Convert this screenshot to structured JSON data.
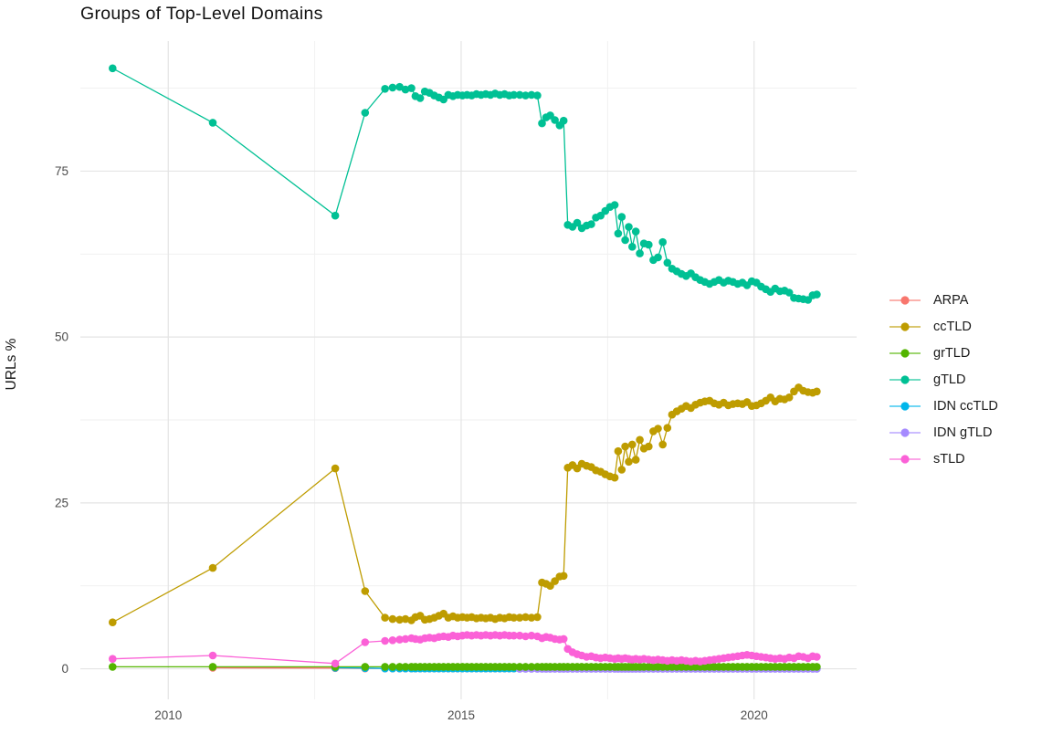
{
  "chart_data": {
    "type": "line",
    "title": "Groups of Top-Level Domains",
    "xlabel": "",
    "ylabel": "URLs %",
    "xlim": [
      2008.5,
      2021.75
    ],
    "ylim": [
      -4.6,
      94.6
    ],
    "grid": true,
    "legend_position": "right",
    "x_ticks": [
      {
        "value": 2010,
        "label": "2010"
      },
      {
        "value": 2015,
        "label": "2015"
      },
      {
        "value": 2020,
        "label": "2020"
      }
    ],
    "x_minor_ticks": [
      2012.5,
      2017.5
    ],
    "y_ticks": [
      {
        "value": 0,
        "label": "0"
      },
      {
        "value": 25,
        "label": "25"
      },
      {
        "value": 50,
        "label": "50"
      },
      {
        "value": 75,
        "label": "75"
      }
    ],
    "y_minor_ticks": [
      12.5,
      37.5,
      62.5,
      87.5
    ],
    "x": [
      2009.05,
      2010.76,
      2012.85,
      2013.36,
      2013.7,
      2013.83,
      2013.95,
      2014.05,
      2014.15,
      2014.22,
      2014.3,
      2014.38,
      2014.46,
      2014.54,
      2014.62,
      2014.7,
      2014.78,
      2014.86,
      2014.94,
      2015.02,
      2015.1,
      2015.18,
      2015.26,
      2015.34,
      2015.42,
      2015.5,
      2015.58,
      2015.66,
      2015.74,
      2015.82,
      2015.9,
      2016.0,
      2016.1,
      2016.2,
      2016.3,
      2016.38,
      2016.45,
      2016.52,
      2016.6,
      2016.68,
      2016.75,
      2016.82,
      2016.9,
      2016.98,
      2017.06,
      2017.14,
      2017.22,
      2017.3,
      2017.38,
      2017.46,
      2017.54,
      2017.62,
      2017.68,
      2017.74,
      2017.8,
      2017.86,
      2017.92,
      2017.98,
      2018.05,
      2018.12,
      2018.2,
      2018.28,
      2018.36,
      2018.44,
      2018.52,
      2018.6,
      2018.68,
      2018.76,
      2018.84,
      2018.92,
      2019.0,
      2019.08,
      2019.16,
      2019.24,
      2019.32,
      2019.4,
      2019.48,
      2019.56,
      2019.64,
      2019.72,
      2019.8,
      2019.88,
      2019.96,
      2020.04,
      2020.12,
      2020.2,
      2020.28,
      2020.36,
      2020.44,
      2020.52,
      2020.6,
      2020.68,
      2020.76,
      2020.84,
      2020.92,
      2021.0,
      2021.07
    ],
    "series": [
      {
        "name": "ARPA",
        "color": "#F8766D",
        "y": [
          null,
          0.15,
          0.1,
          0.05,
          0.05,
          0.05,
          0.05,
          0.05,
          0.05,
          0.05,
          0.05,
          0.05,
          0.05,
          0.05,
          0.05,
          0.05,
          0.05,
          0.05,
          0.05,
          0.05,
          0.05,
          0.05,
          0.05,
          0.05,
          0.05,
          0.05,
          0.05,
          0.05,
          0.05,
          0.05,
          0.05,
          0.05,
          0.05,
          0.05,
          0.05,
          0.05,
          0.05,
          0.05,
          0.05,
          0.05,
          0.05,
          0.05,
          0.05,
          0.05,
          0.05,
          0.05,
          0.05,
          0.05,
          0.05,
          0.05,
          0.05,
          0.05,
          0.05,
          0.05,
          0.05,
          0.05,
          0.05,
          0.05,
          0.05,
          0.05,
          0.05,
          0.05,
          0.05,
          0.05,
          0.05,
          0.05,
          0.05,
          0.05,
          0.05,
          0.05,
          0.05,
          0.05,
          0.05,
          0.05,
          0.05,
          0.05,
          0.05,
          0.05,
          0.05,
          0.05,
          0.05,
          0.05,
          0.05,
          0.05,
          0.05,
          0.05,
          0.05,
          0.05,
          0.05,
          0.05,
          0.05,
          0.05,
          0.05,
          0.05,
          0.05,
          0.05,
          0.05
        ]
      },
      {
        "name": "IDN ccTLD",
        "color": "#00B6EB",
        "y": [
          null,
          null,
          0.15,
          0.1,
          0.05,
          0.05,
          0.05,
          0.05,
          0.05,
          0.05,
          0.05,
          0.05,
          0.05,
          0.05,
          0.05,
          0.05,
          0.05,
          0.05,
          0.05,
          0.05,
          0.05,
          0.05,
          0.05,
          0.05,
          0.05,
          0.05,
          0.05,
          0.05,
          0.05,
          0.05,
          0.05,
          0.05,
          0.05,
          0.05,
          0.05,
          0.05,
          0.05,
          0.05,
          0.05,
          0.05,
          0.05,
          0.05,
          0.05,
          0.05,
          0.05,
          0.05,
          0.05,
          0.05,
          0.05,
          0.05,
          0.05,
          0.05,
          0.05,
          0.05,
          0.05,
          0.05,
          0.05,
          0.05,
          0.05,
          0.05,
          0.05,
          0.05,
          0.05,
          0.05,
          0.05,
          0.05,
          0.05,
          0.05,
          0.05,
          0.05,
          0.05,
          0.05,
          0.05,
          0.05,
          0.05,
          0.05,
          0.05,
          0.05,
          0.05,
          0.05,
          0.05,
          0.05,
          0.05,
          0.05,
          0.05,
          0.05,
          0.05,
          0.05,
          0.05,
          0.05,
          0.05,
          0.05,
          0.05,
          0.05,
          0.05,
          0.05,
          0.05
        ]
      },
      {
        "name": "IDN gTLD",
        "color": "#A58AFF",
        "y": [
          null,
          null,
          null,
          null,
          null,
          null,
          null,
          null,
          null,
          null,
          null,
          null,
          null,
          null,
          null,
          null,
          null,
          null,
          null,
          null,
          null,
          null,
          null,
          null,
          null,
          null,
          null,
          null,
          null,
          null,
          null,
          0.0,
          0.0,
          0.0,
          0.0,
          0.0,
          0.0,
          0.0,
          0.0,
          0.0,
          0.0,
          0.0,
          0.0,
          0.0,
          0.0,
          0.0,
          0.0,
          0.0,
          0.0,
          0.0,
          0.0,
          0.0,
          0.0,
          0.0,
          0.0,
          0.0,
          0.0,
          0.0,
          0.0,
          0.0,
          0.0,
          0.0,
          0.0,
          0.0,
          0.0,
          0.0,
          0.0,
          0.0,
          0.0,
          0.0,
          0.0,
          0.0,
          0.0,
          0.0,
          0.0,
          0.0,
          0.0,
          0.0,
          0.0,
          0.0,
          0.0,
          0.0,
          0.0,
          0.0,
          0.0,
          0.0,
          0.0,
          0.0,
          0.0,
          0.0,
          0.0,
          0.0,
          0.0,
          0.0,
          0.0,
          0.0,
          0.0
        ]
      },
      {
        "name": "ccTLD",
        "color": "#BE9C00",
        "y": [
          7.0,
          15.2,
          30.2,
          11.7,
          7.7,
          7.5,
          7.4,
          7.5,
          7.3,
          7.8,
          8.0,
          7.4,
          7.5,
          7.7,
          8.0,
          8.3,
          7.7,
          7.9,
          7.7,
          7.8,
          7.7,
          7.8,
          7.6,
          7.7,
          7.6,
          7.7,
          7.5,
          7.7,
          7.6,
          7.8,
          7.7,
          7.7,
          7.8,
          7.7,
          7.8,
          13.0,
          12.8,
          12.5,
          13.2,
          13.9,
          14.0,
          30.3,
          30.7,
          30.2,
          30.9,
          30.6,
          30.4,
          29.9,
          29.7,
          29.3,
          29.0,
          28.8,
          32.8,
          30.0,
          33.5,
          31.2,
          33.8,
          31.5,
          34.5,
          33.2,
          33.5,
          35.8,
          36.2,
          33.8,
          36.3,
          38.3,
          38.8,
          39.2,
          39.6,
          39.3,
          39.8,
          40.1,
          40.3,
          40.4,
          40.0,
          39.8,
          40.1,
          39.7,
          39.9,
          40.0,
          39.9,
          40.2,
          39.6,
          39.7,
          40.0,
          40.4,
          40.9,
          40.3,
          40.7,
          40.6,
          40.9,
          41.8,
          42.4,
          41.9,
          41.7,
          41.6,
          41.8
        ]
      },
      {
        "name": "grTLD",
        "color": "#53B400",
        "y": [
          0.3,
          0.3,
          0.3,
          0.3,
          0.3,
          0.3,
          0.3,
          0.3,
          0.3,
          0.3,
          0.3,
          0.3,
          0.3,
          0.3,
          0.3,
          0.3,
          0.3,
          0.3,
          0.3,
          0.3,
          0.3,
          0.3,
          0.3,
          0.3,
          0.3,
          0.3,
          0.3,
          0.3,
          0.3,
          0.3,
          0.3,
          0.3,
          0.3,
          0.3,
          0.3,
          0.3,
          0.3,
          0.3,
          0.3,
          0.3,
          0.3,
          0.3,
          0.3,
          0.3,
          0.3,
          0.3,
          0.3,
          0.3,
          0.3,
          0.3,
          0.3,
          0.3,
          0.3,
          0.3,
          0.3,
          0.3,
          0.3,
          0.3,
          0.3,
          0.3,
          0.3,
          0.3,
          0.3,
          0.3,
          0.3,
          0.3,
          0.3,
          0.3,
          0.3,
          0.3,
          0.3,
          0.3,
          0.3,
          0.3,
          0.3,
          0.3,
          0.3,
          0.3,
          0.3,
          0.3,
          0.3,
          0.3,
          0.3,
          0.3,
          0.3,
          0.3,
          0.3,
          0.3,
          0.3,
          0.3,
          0.3,
          0.3,
          0.3,
          0.3,
          0.3,
          0.3,
          0.3
        ]
      },
      {
        "name": "gTLD",
        "color": "#00C094",
        "y": [
          90.5,
          82.3,
          68.3,
          83.8,
          87.4,
          87.6,
          87.7,
          87.3,
          87.5,
          86.3,
          86.0,
          87.0,
          86.8,
          86.4,
          86.1,
          85.8,
          86.5,
          86.3,
          86.5,
          86.4,
          86.5,
          86.4,
          86.6,
          86.5,
          86.6,
          86.5,
          86.7,
          86.5,
          86.6,
          86.4,
          86.5,
          86.5,
          86.4,
          86.5,
          86.4,
          82.2,
          83.1,
          83.4,
          82.7,
          81.9,
          82.6,
          66.9,
          66.6,
          67.2,
          66.4,
          66.8,
          67.0,
          68.0,
          68.3,
          69.0,
          69.6,
          69.9,
          65.6,
          68.1,
          64.6,
          66.6,
          63.6,
          65.9,
          62.6,
          64.1,
          63.9,
          61.6,
          62.0,
          64.3,
          61.2,
          60.3,
          59.9,
          59.5,
          59.2,
          59.6,
          59.0,
          58.6,
          58.3,
          58.0,
          58.3,
          58.6,
          58.2,
          58.5,
          58.3,
          58.0,
          58.2,
          57.8,
          58.4,
          58.2,
          57.6,
          57.2,
          56.8,
          57.3,
          56.9,
          57.0,
          56.7,
          55.9,
          55.8,
          55.7,
          55.6,
          56.3,
          56.4
        ]
      },
      {
        "name": "sTLD",
        "color": "#FB61D7",
        "y": [
          1.5,
          2.0,
          0.8,
          4.0,
          4.2,
          4.3,
          4.4,
          4.5,
          4.6,
          4.5,
          4.4,
          4.6,
          4.7,
          4.6,
          4.8,
          4.9,
          4.8,
          5.0,
          4.9,
          5.0,
          5.1,
          5.0,
          5.1,
          5.0,
          5.1,
          5.0,
          5.1,
          5.0,
          5.1,
          5.0,
          5.0,
          5.0,
          4.9,
          5.0,
          4.9,
          4.6,
          4.8,
          4.7,
          4.5,
          4.4,
          4.5,
          3.0,
          2.5,
          2.2,
          2.0,
          1.8,
          1.9,
          1.7,
          1.6,
          1.7,
          1.6,
          1.5,
          1.6,
          1.5,
          1.6,
          1.5,
          1.4,
          1.5,
          1.4,
          1.5,
          1.4,
          1.3,
          1.4,
          1.3,
          1.2,
          1.3,
          1.2,
          1.3,
          1.2,
          1.1,
          1.2,
          1.1,
          1.2,
          1.3,
          1.4,
          1.5,
          1.6,
          1.7,
          1.8,
          1.9,
          2.0,
          2.1,
          2.0,
          1.9,
          1.8,
          1.7,
          1.6,
          1.5,
          1.6,
          1.5,
          1.7,
          1.6,
          1.9,
          1.8,
          1.6,
          1.9,
          1.8
        ]
      }
    ]
  },
  "legend": {
    "items": [
      {
        "label": "ARPA",
        "color": "#F8766D"
      },
      {
        "label": "ccTLD",
        "color": "#BE9C00"
      },
      {
        "label": "grTLD",
        "color": "#53B400"
      },
      {
        "label": "gTLD",
        "color": "#00C094"
      },
      {
        "label": "IDN ccTLD",
        "color": "#00B6EB"
      },
      {
        "label": "IDN gTLD",
        "color": "#A58AFF"
      },
      {
        "label": "sTLD",
        "color": "#FB61D7"
      }
    ]
  },
  "style": {
    "grid_major_color": "#E4E4E4",
    "grid_minor_color": "#EFEFEF",
    "tick_label_color": "#4d4d4d"
  }
}
